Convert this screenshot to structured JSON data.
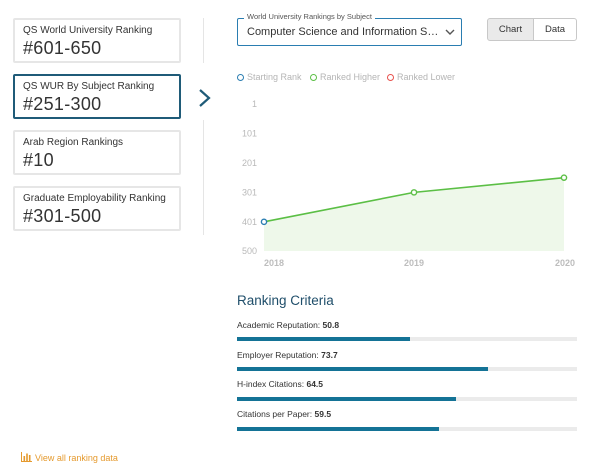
{
  "rankings": [
    {
      "label": "QS World University Ranking",
      "value": "#601-650"
    },
    {
      "label": "QS WUR By Subject Ranking",
      "value": "#251-300"
    },
    {
      "label": "Arab Region Rankings",
      "value": "#10"
    },
    {
      "label": "Graduate Employability Ranking",
      "value": "#301-500"
    }
  ],
  "subject_select": {
    "legend": "World University Rankings by Subject",
    "value": "Computer Science and Information Systems"
  },
  "view_toggle": {
    "chart_label": "Chart",
    "data_label": "Data",
    "selected": "Chart"
  },
  "chart_legend": {
    "starting": "Starting Rank",
    "higher": "Ranked Higher",
    "lower": "Ranked Lower",
    "starting_color": "#2a7db1",
    "higher_color": "#5bbf45",
    "lower_color": "#e8504c"
  },
  "chart_data": {
    "type": "line",
    "x": [
      "2018",
      "2019",
      "2020"
    ],
    "y_ticks": [
      "1",
      "101",
      "201",
      "301",
      "401",
      "500"
    ],
    "ylim": [
      1,
      500
    ],
    "y_inverted": true,
    "series": [
      {
        "values": [
          401,
          301,
          251
        ]
      }
    ],
    "point_types": [
      "starting",
      "higher",
      "higher"
    ],
    "line_color": "#5bbf45",
    "fill_color": "#eef8ea"
  },
  "criteria": {
    "title": "Ranking Criteria",
    "items": [
      {
        "label": "Academic Reputation:",
        "score": "50.8"
      },
      {
        "label": "Employer Reputation:",
        "score": "73.7"
      },
      {
        "label": "H-index Citations:",
        "score": "64.5"
      },
      {
        "label": "Citations per Paper:",
        "score": "59.5"
      }
    ],
    "max": 100
  },
  "footer": {
    "view_all": "View all ranking data",
    "accent": "#e59a2e"
  }
}
